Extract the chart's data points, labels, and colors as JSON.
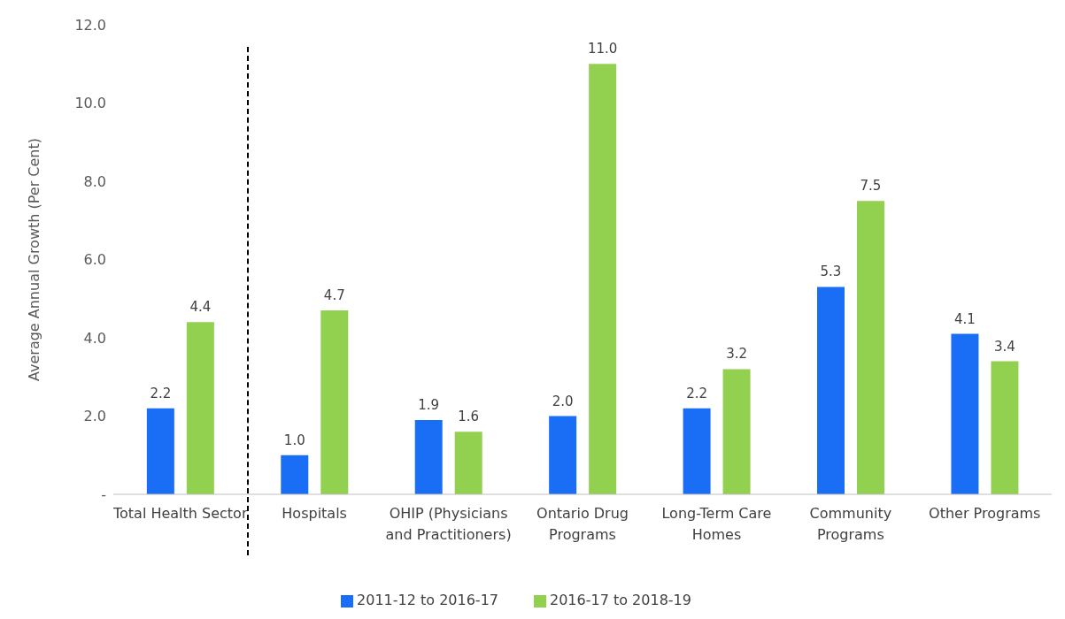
{
  "chart_data": {
    "type": "bar",
    "ylabel": "Average Annual Growth (Per Cent)",
    "categories": [
      "Total Health Sector",
      "Hospitals",
      "OHIP (Physicians and Practitioners)",
      "Ontario Drug Programs",
      "Long-Term Care Homes",
      "Community Programs",
      "Other Programs"
    ],
    "series": [
      {
        "name": "2011-12 to 2016-17",
        "color": "#1a6ef5",
        "values": [
          2.2,
          1.0,
          1.9,
          2.0,
          2.2,
          5.3,
          4.1
        ],
        "value_labels": [
          "2.2",
          "1.0",
          "1.9",
          "2.0",
          "2.2",
          "5.3",
          "4.1"
        ]
      },
      {
        "name": "2016-17 to 2018-19",
        "color": "#92d050",
        "values": [
          4.4,
          4.7,
          1.6,
          11.0,
          3.2,
          7.5,
          3.4
        ],
        "value_labels": [
          "4.4",
          "4.7",
          "1.6",
          "11.0",
          "3.2",
          "7.5",
          "3.4"
        ]
      }
    ],
    "ylim": [
      0,
      12
    ],
    "yticks": [
      {
        "value": 0,
        "label": "-"
      },
      {
        "value": 2,
        "label": "2.0"
      },
      {
        "value": 4,
        "label": "4.0"
      },
      {
        "value": 6,
        "label": "6.0"
      },
      {
        "value": 8,
        "label": "8.0"
      },
      {
        "value": 10,
        "label": "10.0"
      },
      {
        "value": 12,
        "label": "12.0"
      }
    ],
    "grid": false,
    "legend": "bottom"
  }
}
